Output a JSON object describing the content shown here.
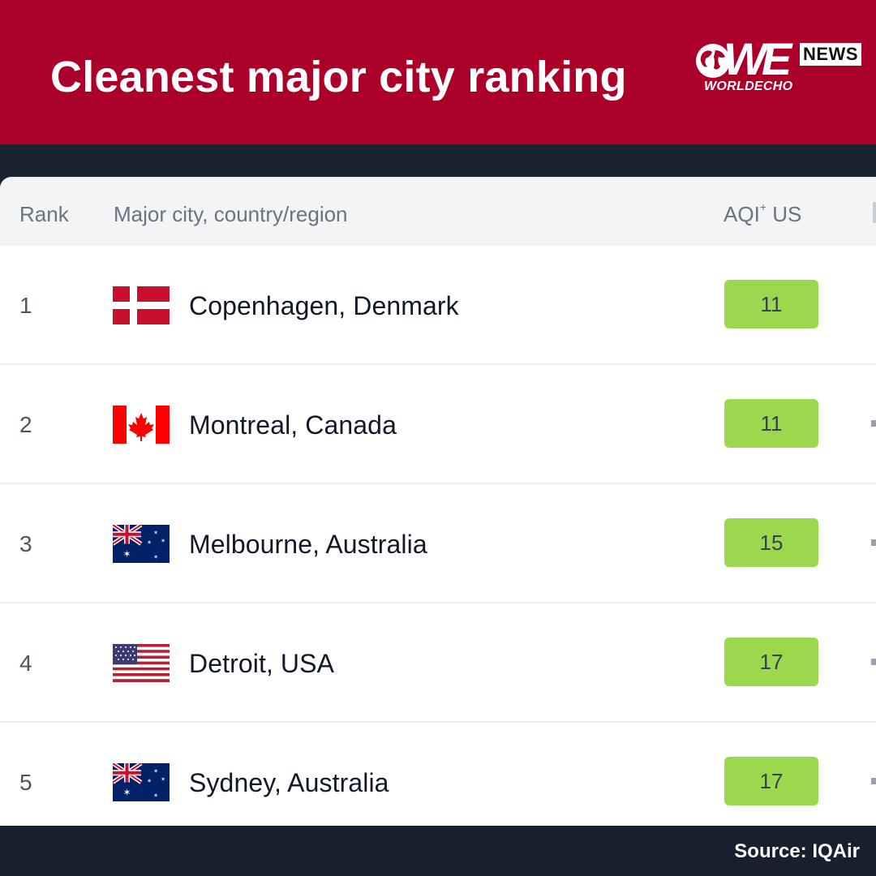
{
  "header": {
    "title": "Cleanest major city ranking",
    "logo": {
      "we": "WE",
      "news": "NEWS",
      "sub": "WORLDECHO"
    }
  },
  "table": {
    "columns": {
      "rank": "Rank",
      "city": "Major city, country/region",
      "aqi": "AQI",
      "aqi_sup": "+",
      "aqi_suffix": "US"
    },
    "rows": [
      {
        "rank": "1",
        "city": "Copenhagen, Denmark",
        "flag": "denmark-flag",
        "aqi": "11"
      },
      {
        "rank": "2",
        "city": "Montreal, Canada",
        "flag": "canada-flag",
        "aqi": "11"
      },
      {
        "rank": "3",
        "city": "Melbourne, Australia",
        "flag": "australia-flag",
        "aqi": "15"
      },
      {
        "rank": "4",
        "city": "Detroit, USA",
        "flag": "usa-flag",
        "aqi": "17"
      },
      {
        "rank": "5",
        "city": "Sydney, Australia",
        "flag": "australia-flag",
        "aqi": "17"
      }
    ]
  },
  "footer": {
    "source": "Source: IQAir"
  },
  "colors": {
    "header_bg": "#ab0029",
    "aqi_good": "#9cd84e",
    "footer_bg": "#17202c"
  }
}
